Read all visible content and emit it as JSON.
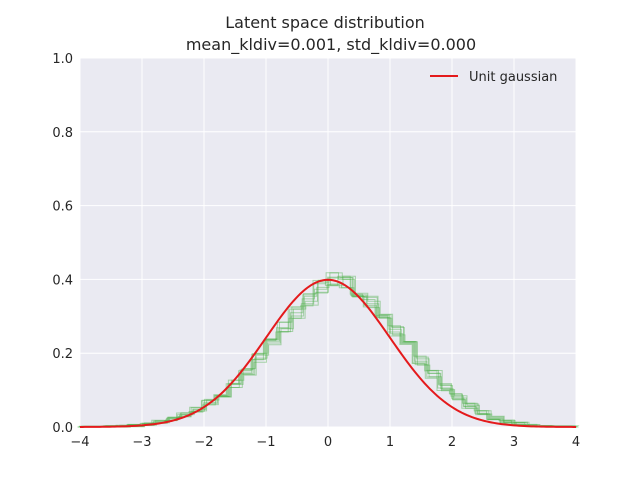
{
  "chart_data": {
    "type": "line",
    "title": "Latent space distribution",
    "subtitle": "mean_kldiv=0.001, std_kldiv=0.000",
    "xlabel": "",
    "ylabel": "",
    "xlim": [
      -4,
      4
    ],
    "ylim": [
      0,
      1.0
    ],
    "xticks": [
      "−4",
      "−3",
      "−2",
      "−1",
      "0",
      "1",
      "2",
      "3",
      "4"
    ],
    "yticks": [
      "0.0",
      "0.2",
      "0.4",
      "0.6",
      "0.8",
      "1.0"
    ],
    "grid": true,
    "legend_position": "top-right",
    "colors": {
      "plot_background": "#eaeaf2",
      "grid": "#ffffff",
      "curve": "#e41a1c",
      "histograms": "#4daf4a"
    },
    "series": [
      {
        "name": "Unit gaussian",
        "kind": "line",
        "x": [
          -4.0,
          -3.5,
          -3.0,
          -2.5,
          -2.0,
          -1.5,
          -1.0,
          -0.5,
          0.0,
          0.5,
          1.0,
          1.5,
          2.0,
          2.5,
          3.0,
          3.5,
          4.0
        ],
        "y": [
          0.0001,
          0.0009,
          0.0044,
          0.0175,
          0.054,
          0.1295,
          0.242,
          0.3521,
          0.3989,
          0.3521,
          0.242,
          0.1295,
          0.054,
          0.0175,
          0.0044,
          0.0009,
          0.0001
        ]
      },
      {
        "kind": "step_histograms",
        "count": 8,
        "bin_edges": [
          -4.0,
          -3.6,
          -3.4,
          -3.2,
          -3.0,
          -2.8,
          -2.6,
          -2.4,
          -2.2,
          -2.0,
          -1.8,
          -1.6,
          -1.4,
          -1.2,
          -1.0,
          -0.8,
          -0.6,
          -0.4,
          -0.2,
          0.0,
          0.2,
          0.4,
          0.6,
          0.8,
          1.0,
          1.2,
          1.4,
          1.6,
          1.8,
          2.0,
          2.2,
          2.4,
          2.6,
          2.8,
          3.0,
          3.2,
          3.4,
          3.6,
          4.0
        ],
        "densities": [
          0.0002,
          0.001,
          0.002,
          0.004,
          0.008,
          0.014,
          0.022,
          0.033,
          0.047,
          0.067,
          0.09,
          0.117,
          0.15,
          0.188,
          0.225,
          0.27,
          0.31,
          0.345,
          0.38,
          0.4,
          0.395,
          0.37,
          0.34,
          0.3,
          0.26,
          0.218,
          0.18,
          0.143,
          0.108,
          0.082,
          0.058,
          0.038,
          0.025,
          0.015,
          0.009,
          0.004,
          0.002,
          0.0005
        ]
      }
    ]
  }
}
